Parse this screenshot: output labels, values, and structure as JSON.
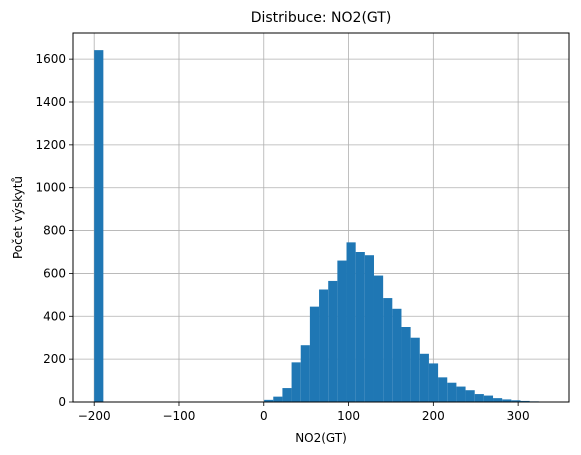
{
  "chart_data": {
    "type": "bar",
    "title": "Distribuce: NO2(GT)",
    "xlabel": "NO2(GT)",
    "ylabel": "Počet výskytů",
    "xlim": [
      -225,
      360
    ],
    "ylim": [
      0,
      1722
    ],
    "xticks": [
      -200,
      -100,
      0,
      100,
      200,
      300
    ],
    "xtick_labels": [
      "−200",
      "−100",
      "0",
      "100",
      "200",
      "300"
    ],
    "yticks": [
      0,
      200,
      400,
      600,
      800,
      1000,
      1200,
      1400,
      1600
    ],
    "ytick_labels": [
      "0",
      "200",
      "400",
      "600",
      "800",
      "1000",
      "1200",
      "1400",
      "1600"
    ],
    "grid": true,
    "color": "#1f77b4",
    "bin_width": 10.8,
    "bins": [
      {
        "x0": -200.0,
        "value": 1642
      },
      {
        "x0": 0.4,
        "value": 10
      },
      {
        "x0": 11.2,
        "value": 25
      },
      {
        "x0": 22.0,
        "value": 65
      },
      {
        "x0": 32.8,
        "value": 185
      },
      {
        "x0": 43.6,
        "value": 265
      },
      {
        "x0": 54.4,
        "value": 445
      },
      {
        "x0": 65.2,
        "value": 525
      },
      {
        "x0": 76.0,
        "value": 565
      },
      {
        "x0": 86.8,
        "value": 660
      },
      {
        "x0": 97.6,
        "value": 745
      },
      {
        "x0": 108.4,
        "value": 700
      },
      {
        "x0": 119.2,
        "value": 685
      },
      {
        "x0": 130.0,
        "value": 590
      },
      {
        "x0": 140.8,
        "value": 485
      },
      {
        "x0": 151.6,
        "value": 435
      },
      {
        "x0": 162.4,
        "value": 350
      },
      {
        "x0": 173.2,
        "value": 300
      },
      {
        "x0": 184.0,
        "value": 225
      },
      {
        "x0": 194.8,
        "value": 180
      },
      {
        "x0": 205.6,
        "value": 115
      },
      {
        "x0": 216.4,
        "value": 90
      },
      {
        "x0": 227.2,
        "value": 72
      },
      {
        "x0": 238.0,
        "value": 55
      },
      {
        "x0": 248.8,
        "value": 37
      },
      {
        "x0": 259.6,
        "value": 30
      },
      {
        "x0": 270.4,
        "value": 18
      },
      {
        "x0": 281.2,
        "value": 12
      },
      {
        "x0": 292.0,
        "value": 8
      },
      {
        "x0": 302.8,
        "value": 5
      },
      {
        "x0": 313.6,
        "value": 3
      },
      {
        "x0": 324.4,
        "value": 2
      }
    ]
  }
}
